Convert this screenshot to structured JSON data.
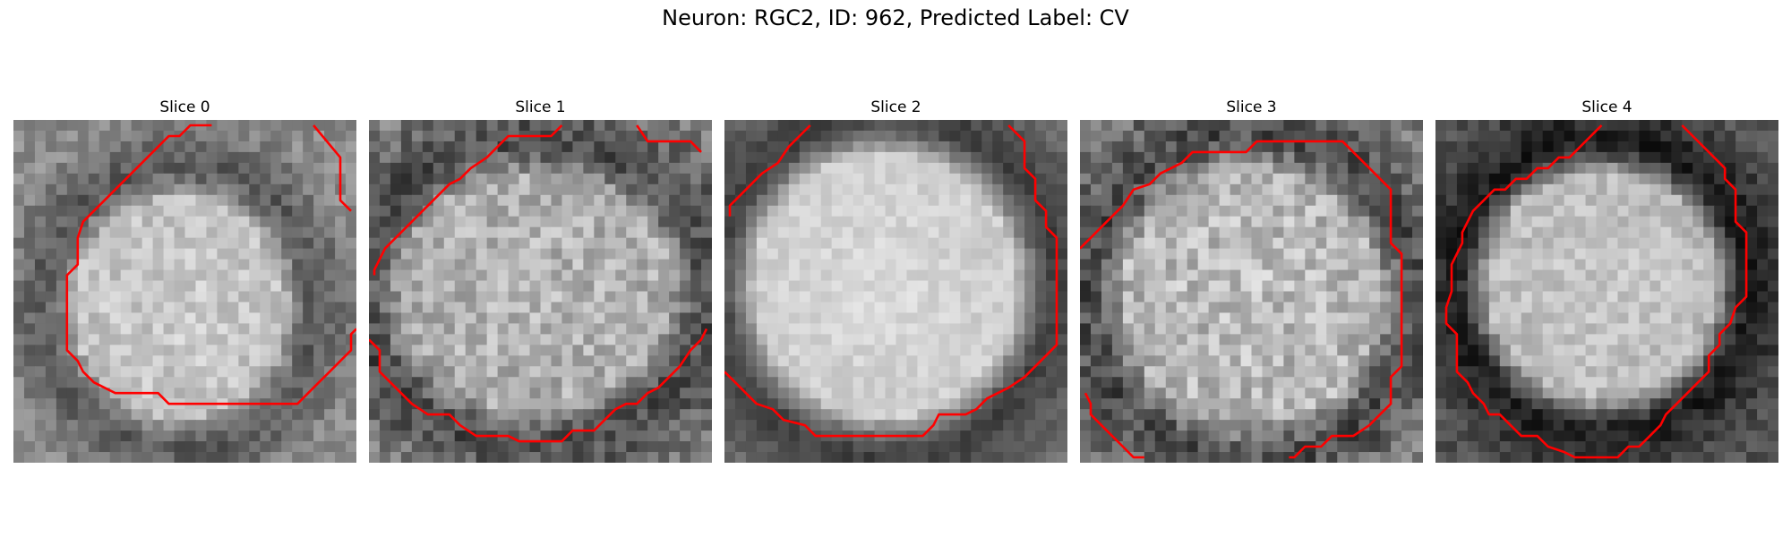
{
  "figure": {
    "title": "Neuron: RGC2, ID: 962, Predicted Label: CV"
  },
  "panels": [
    {
      "title": "Slice 0",
      "image": "grayscale cell micrograph slice"
    },
    {
      "title": "Slice 1",
      "image": "grayscale cell micrograph slice"
    },
    {
      "title": "Slice 2",
      "image": "grayscale cell micrograph slice"
    },
    {
      "title": "Slice 3",
      "image": "grayscale cell micrograph slice"
    },
    {
      "title": "Slice 4",
      "image": "grayscale cell micrograph slice"
    }
  ],
  "colors": {
    "contour": "#ff0000",
    "background": "#ffffff"
  }
}
